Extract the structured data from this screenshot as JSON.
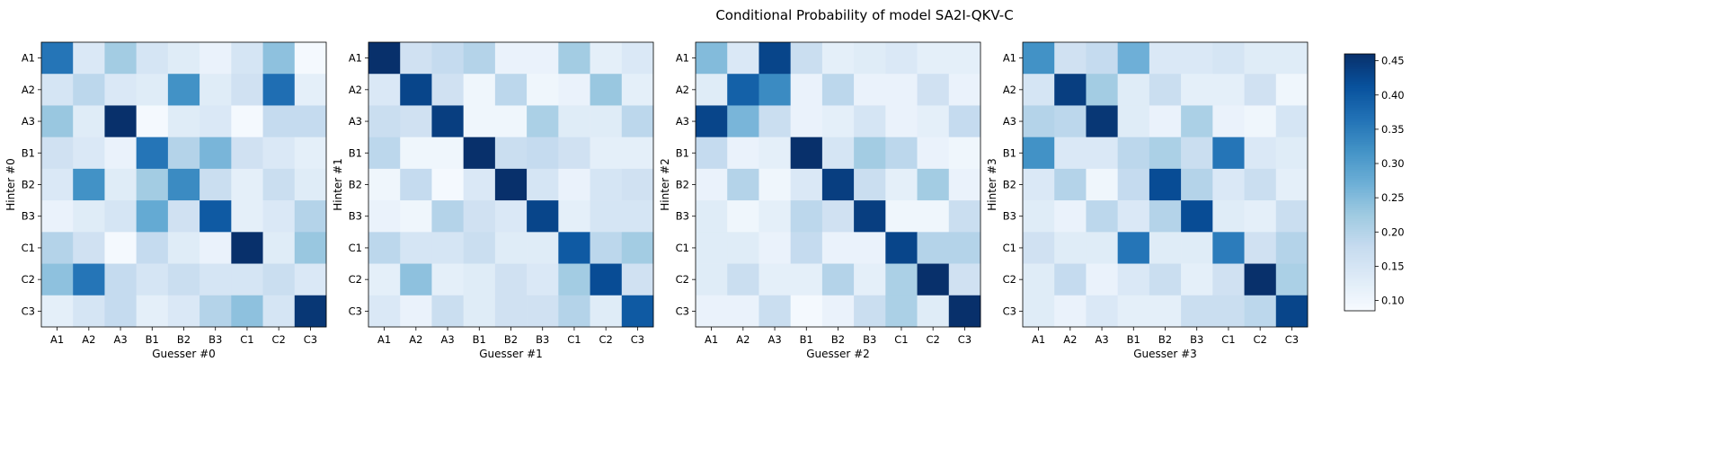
{
  "title": "Conditional Probability of model SA2I-QKV-C",
  "chart_data": {
    "type": "heatmap",
    "title": "Conditional Probability of model SA2I-QKV-C",
    "categories": [
      "A1",
      "A2",
      "A3",
      "B1",
      "B2",
      "B3",
      "C1",
      "C2",
      "C3"
    ],
    "colormap": "Blues",
    "colorbar": {
      "min": 0.085,
      "max": 0.46,
      "ticks": [
        "0.10",
        "0.15",
        "0.20",
        "0.25",
        "0.30",
        "0.35",
        "0.40",
        "0.45"
      ]
    },
    "panels": [
      {
        "xlabel": "Guesser #0",
        "ylabel": "Hinter #0",
        "values": [
          [
            0.36,
            0.14,
            0.22,
            0.15,
            0.13,
            0.11,
            0.15,
            0.24,
            0.09
          ],
          [
            0.15,
            0.19,
            0.14,
            0.13,
            0.32,
            0.13,
            0.16,
            0.37,
            0.12
          ],
          [
            0.23,
            0.13,
            0.46,
            0.09,
            0.13,
            0.14,
            0.09,
            0.18,
            0.18
          ],
          [
            0.16,
            0.14,
            0.11,
            0.36,
            0.2,
            0.26,
            0.16,
            0.14,
            0.12
          ],
          [
            0.14,
            0.32,
            0.13,
            0.22,
            0.33,
            0.17,
            0.12,
            0.17,
            0.13
          ],
          [
            0.11,
            0.13,
            0.15,
            0.28,
            0.16,
            0.4,
            0.12,
            0.14,
            0.2
          ],
          [
            0.2,
            0.16,
            0.09,
            0.18,
            0.13,
            0.11,
            0.46,
            0.13,
            0.23
          ],
          [
            0.24,
            0.36,
            0.18,
            0.15,
            0.17,
            0.15,
            0.15,
            0.17,
            0.14
          ],
          [
            0.12,
            0.15,
            0.18,
            0.12,
            0.14,
            0.2,
            0.24,
            0.15,
            0.45
          ]
        ]
      },
      {
        "xlabel": "Guesser #1",
        "ylabel": "Hinter #1",
        "values": [
          [
            0.46,
            0.16,
            0.18,
            0.2,
            0.11,
            0.11,
            0.22,
            0.12,
            0.14
          ],
          [
            0.14,
            0.43,
            0.16,
            0.1,
            0.19,
            0.1,
            0.11,
            0.23,
            0.12
          ],
          [
            0.17,
            0.16,
            0.44,
            0.1,
            0.1,
            0.21,
            0.13,
            0.13,
            0.19
          ],
          [
            0.19,
            0.1,
            0.1,
            0.46,
            0.17,
            0.18,
            0.16,
            0.12,
            0.12
          ],
          [
            0.1,
            0.18,
            0.09,
            0.14,
            0.46,
            0.15,
            0.11,
            0.15,
            0.16
          ],
          [
            0.11,
            0.1,
            0.2,
            0.16,
            0.14,
            0.43,
            0.12,
            0.15,
            0.15
          ],
          [
            0.19,
            0.15,
            0.15,
            0.17,
            0.13,
            0.13,
            0.4,
            0.19,
            0.22
          ],
          [
            0.12,
            0.24,
            0.12,
            0.13,
            0.16,
            0.14,
            0.22,
            0.42,
            0.16
          ],
          [
            0.14,
            0.11,
            0.17,
            0.13,
            0.16,
            0.16,
            0.2,
            0.13,
            0.4
          ]
        ]
      },
      {
        "xlabel": "Guesser #2",
        "ylabel": "Hinter #2",
        "values": [
          [
            0.25,
            0.14,
            0.43,
            0.17,
            0.12,
            0.13,
            0.14,
            0.12,
            0.12
          ],
          [
            0.13,
            0.39,
            0.33,
            0.11,
            0.19,
            0.11,
            0.11,
            0.16,
            0.11
          ],
          [
            0.43,
            0.26,
            0.17,
            0.11,
            0.12,
            0.15,
            0.11,
            0.12,
            0.18
          ],
          [
            0.18,
            0.11,
            0.12,
            0.46,
            0.15,
            0.22,
            0.19,
            0.11,
            0.1
          ],
          [
            0.11,
            0.2,
            0.1,
            0.14,
            0.44,
            0.17,
            0.12,
            0.22,
            0.11
          ],
          [
            0.13,
            0.1,
            0.12,
            0.19,
            0.16,
            0.44,
            0.1,
            0.1,
            0.17
          ],
          [
            0.13,
            0.13,
            0.11,
            0.18,
            0.11,
            0.11,
            0.43,
            0.2,
            0.2
          ],
          [
            0.13,
            0.17,
            0.12,
            0.12,
            0.2,
            0.12,
            0.21,
            0.46,
            0.16
          ],
          [
            0.11,
            0.11,
            0.17,
            0.09,
            0.11,
            0.17,
            0.21,
            0.13,
            0.46
          ]
        ]
      },
      {
        "xlabel": "Guesser #3",
        "ylabel": "Hinter #3",
        "values": [
          [
            0.32,
            0.16,
            0.18,
            0.27,
            0.14,
            0.14,
            0.15,
            0.13,
            0.13
          ],
          [
            0.15,
            0.44,
            0.22,
            0.13,
            0.17,
            0.12,
            0.12,
            0.16,
            0.1
          ],
          [
            0.2,
            0.19,
            0.45,
            0.13,
            0.11,
            0.21,
            0.11,
            0.1,
            0.15
          ],
          [
            0.32,
            0.14,
            0.14,
            0.19,
            0.21,
            0.17,
            0.36,
            0.14,
            0.13
          ],
          [
            0.14,
            0.2,
            0.1,
            0.18,
            0.42,
            0.2,
            0.14,
            0.17,
            0.12
          ],
          [
            0.13,
            0.11,
            0.19,
            0.14,
            0.2,
            0.42,
            0.13,
            0.12,
            0.17
          ],
          [
            0.16,
            0.13,
            0.13,
            0.36,
            0.13,
            0.13,
            0.35,
            0.16,
            0.2
          ],
          [
            0.13,
            0.18,
            0.11,
            0.14,
            0.17,
            0.12,
            0.16,
            0.46,
            0.21
          ],
          [
            0.13,
            0.11,
            0.14,
            0.12,
            0.12,
            0.17,
            0.17,
            0.19,
            0.43
          ]
        ]
      }
    ]
  }
}
